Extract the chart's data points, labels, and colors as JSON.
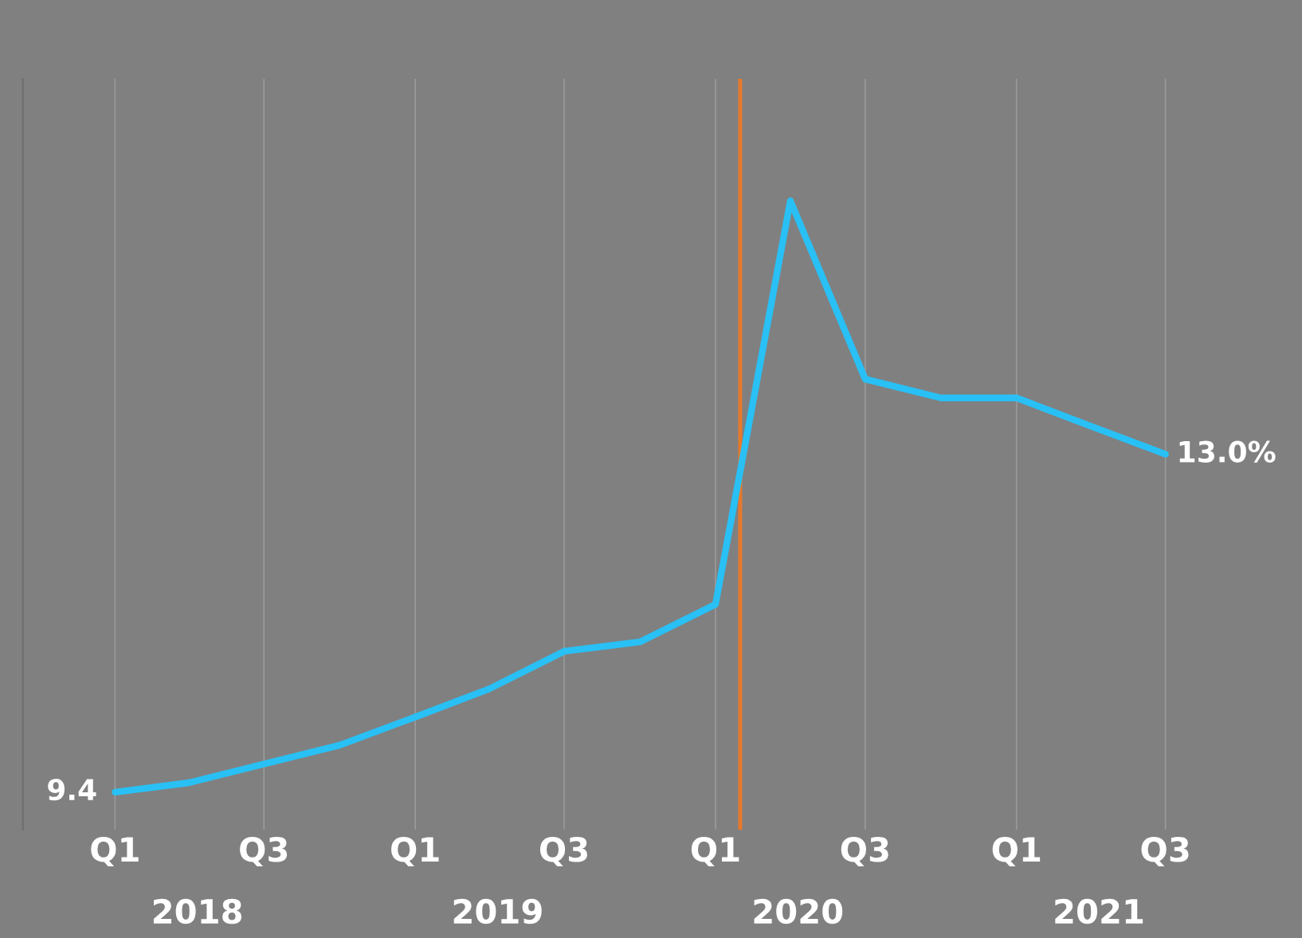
{
  "chart_data": {
    "type": "line",
    "x": [
      "2018-01",
      "2018-04",
      "2018-07",
      "2018-10",
      "2019-01",
      "2019-04",
      "2019-07",
      "2019-10",
      "2020-01",
      "2020-04",
      "2020-07",
      "2020-10",
      "2021-01",
      "2021-04",
      "2021-07"
    ],
    "series": [
      {
        "color": "#29c0f5",
        "values": [
          9.4,
          9.5,
          9.7,
          9.9,
          10.2,
          10.5,
          10.9,
          11.0,
          11.4,
          15.7,
          13.8,
          13.6,
          13.6,
          13.3,
          13.0
        ],
        "value_labels": [
          "9.4",
          null,
          null,
          null,
          null,
          null,
          null,
          null,
          null,
          null,
          null,
          null,
          null,
          null,
          "13.0%"
        ]
      }
    ],
    "xlim": [
      "2017-09-11",
      "2021-12-14"
    ],
    "xticks": [
      {
        "value": "2018-01",
        "label": "Q1"
      },
      {
        "value": "2018-07",
        "label": "Q3"
      },
      {
        "value": "2019-01",
        "label": "Q1"
      },
      {
        "value": "2019-07",
        "label": "Q3"
      },
      {
        "value": "2020-01",
        "label": "Q1"
      },
      {
        "value": "2020-07",
        "label": "Q3"
      },
      {
        "value": "2021-01",
        "label": "Q1"
      },
      {
        "value": "2021-07",
        "label": "Q3"
      }
    ],
    "ylim": [
      9.0,
      17.0
    ],
    "annotations": [
      "2018",
      "2019",
      "2020",
      "2021"
    ],
    "ref_lines": [
      {
        "axis": "x",
        "value": "2020-01-31",
        "color": "#e8782a"
      }
    ],
    "grid": "x",
    "tick_labels": "x",
    "legend": false,
    "marker": "none",
    "line_style": "solid"
  }
}
